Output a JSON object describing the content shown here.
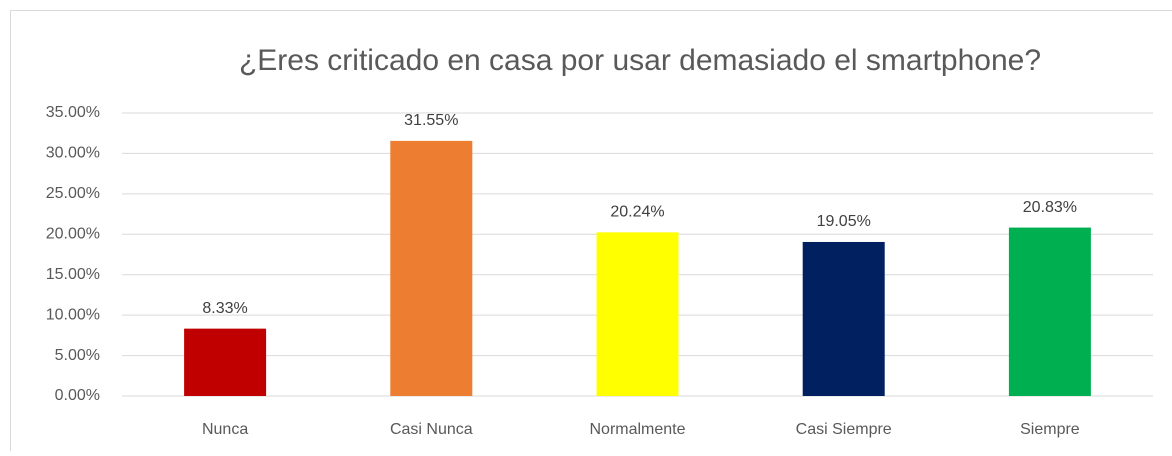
{
  "chart_data": {
    "type": "bar",
    "title": "¿Eres criticado en casa por usar demasiado el smartphone?",
    "categories": [
      "Nunca",
      "Casi Nunca",
      "Normalmente",
      "Casi Siempre",
      "Siempre"
    ],
    "values": [
      8.33,
      31.55,
      20.24,
      19.05,
      20.83
    ],
    "value_labels": [
      "8.33%",
      "31.55%",
      "20.24%",
      "19.05%",
      "20.83%"
    ],
    "colors": [
      "#c00000",
      "#ed7d31",
      "#ffff00",
      "#002060",
      "#00b050"
    ],
    "ylim": [
      0,
      35
    ],
    "yticks": [
      {
        "value": 0,
        "label": "0.00%"
      },
      {
        "value": 5,
        "label": "5.00%"
      },
      {
        "value": 10,
        "label": "10.00%"
      },
      {
        "value": 15,
        "label": "15.00%"
      },
      {
        "value": 20,
        "label": "20.00%"
      },
      {
        "value": 25,
        "label": "25.00%"
      },
      {
        "value": 30,
        "label": "30.00%"
      },
      {
        "value": 35,
        "label": "35.00%"
      }
    ],
    "grid": true
  }
}
